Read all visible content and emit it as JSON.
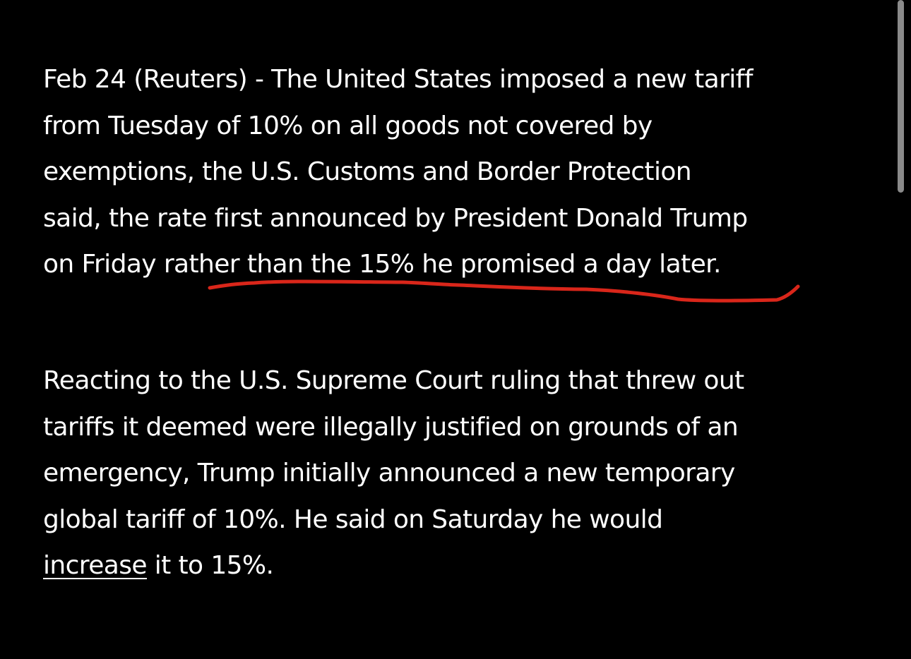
{
  "article": {
    "paragraphs": [
      {
        "lines": [
          "Feb 24 (Reuters) - The United States imposed a new tariff",
          "from Tuesday of 10% on all goods not covered by",
          "exemptions, the U.S. Customs and Border Protection",
          "said, the rate first announced by President Donald Trump",
          "on Friday rather than the 15% he promised a day later."
        ]
      },
      {
        "lines": [
          "Reacting to the U.S. Supreme Court ruling that threw out",
          "tariffs it deemed were illegally justified on grounds of an",
          "emergency, Trump initially announced a new temporary",
          "global tariff of 10%. He said on Saturday he would"
        ],
        "last_line_link": "increase",
        "last_line_rest": " it to 15%."
      }
    ]
  },
  "annotation": {
    "type": "hand-drawn underline",
    "color": "#d9261a"
  },
  "colors": {
    "background": "#000000",
    "text": "#ffffff",
    "scrollbar": "#8a8a8a"
  }
}
